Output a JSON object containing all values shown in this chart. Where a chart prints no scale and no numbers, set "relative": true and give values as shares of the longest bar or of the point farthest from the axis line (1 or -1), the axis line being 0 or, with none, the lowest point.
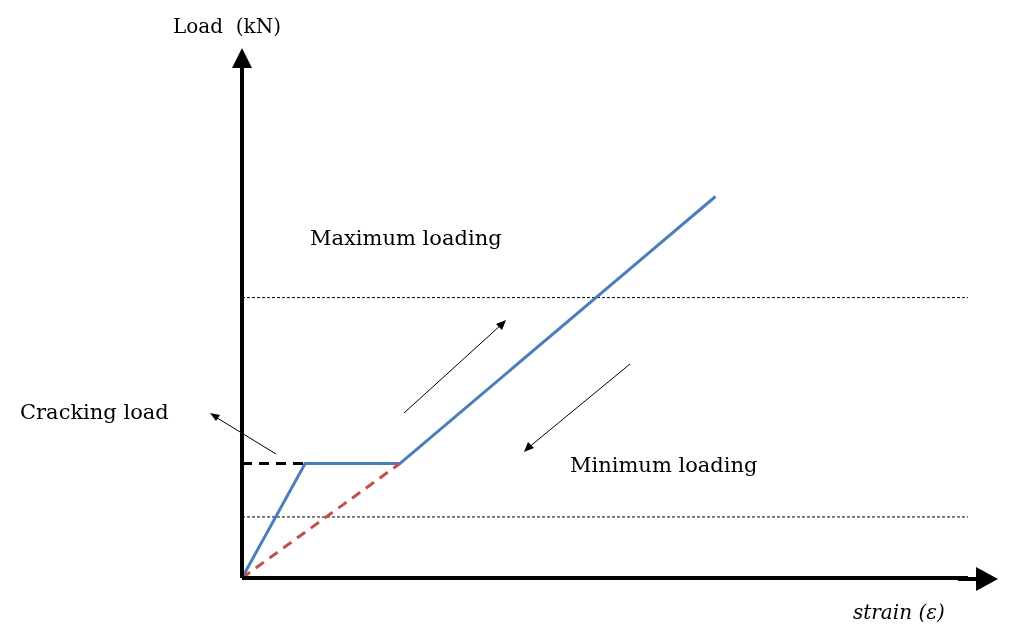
{
  "chart_data": {
    "type": "line",
    "relative": true,
    "xlabel": "strain (ε)",
    "categories": [
      null,
      null,
      null,
      null,
      null,
      null,
      null,
      null,
      null,
      null,
      null,
      null,
      null,
      null,
      null,
      null,
      null,
      null,
      null,
      null,
      null,
      null,
      null,
      null
    ],
    "series": [
      {
        "color": "#4a7ebb",
        "line_style": "solid",
        "values": [
          0,
          null,
          0.3,
          null,
          null,
          0.3,
          null,
          null,
          null,
          null,
          null,
          null,
          null,
          null,
          null,
          1,
          null,
          null,
          null,
          null,
          null,
          null,
          null,
          null
        ]
      },
      {
        "color": "#c0504d",
        "line_style": "dashed",
        "values": [
          0,
          null,
          null,
          null,
          null,
          0.3,
          null,
          null,
          null,
          null,
          null,
          null,
          null,
          null,
          null,
          null,
          null,
          null,
          null,
          null,
          null,
          null,
          null,
          null
        ]
      },
      {
        "color": "#000000",
        "line_style": "dashed",
        "values": [
          0.3,
          null,
          0.3,
          null,
          null,
          null,
          null,
          null,
          null,
          null,
          null,
          null,
          null,
          null,
          null,
          null,
          null,
          null,
          null,
          null,
          null,
          null,
          null,
          null
        ]
      }
    ],
    "ref_lines": [
      {
        "axis": "y",
        "value": 0.735,
        "color": "#000000",
        "line_style": "dotted"
      },
      {
        "axis": "y",
        "value": 0.16,
        "color": "#000000",
        "line_style": "dotted"
      }
    ],
    "annotations": [
      "Maximum loading",
      "Minimum loading",
      "Cracking load",
      "Load  (kN)"
    ],
    "marker": "none"
  }
}
